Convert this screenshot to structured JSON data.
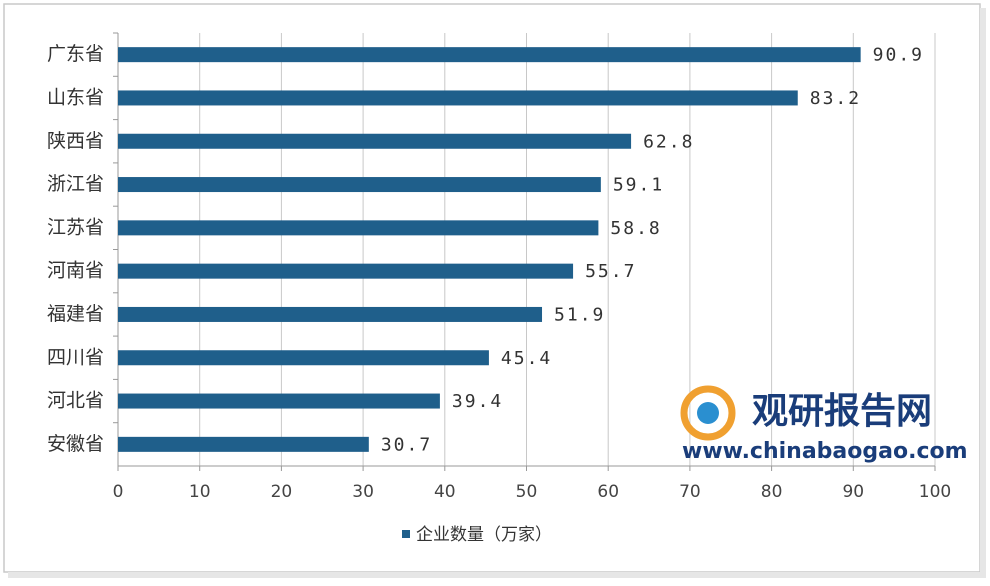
{
  "chart_data": {
    "type": "bar",
    "orientation": "horizontal",
    "categories": [
      "广东省",
      "山东省",
      "陕西省",
      "浙江省",
      "江苏省",
      "河南省",
      "福建省",
      "四川省",
      "河北省",
      "安徽省"
    ],
    "series": [
      {
        "name": "企业数量（万家）",
        "color": "#1f5f8b",
        "values": [
          90.9,
          83.2,
          62.8,
          59.1,
          58.8,
          55.7,
          51.9,
          45.4,
          39.4,
          30.7
        ]
      }
    ],
    "xlim": [
      0,
      100
    ],
    "xticks": [
      0,
      10,
      20,
      30,
      40,
      50,
      60,
      70,
      80,
      90,
      100
    ],
    "grid": true,
    "legend": "bottom"
  },
  "watermark": {
    "title": "观研报告网",
    "url": "www.chinabaogao.com"
  }
}
